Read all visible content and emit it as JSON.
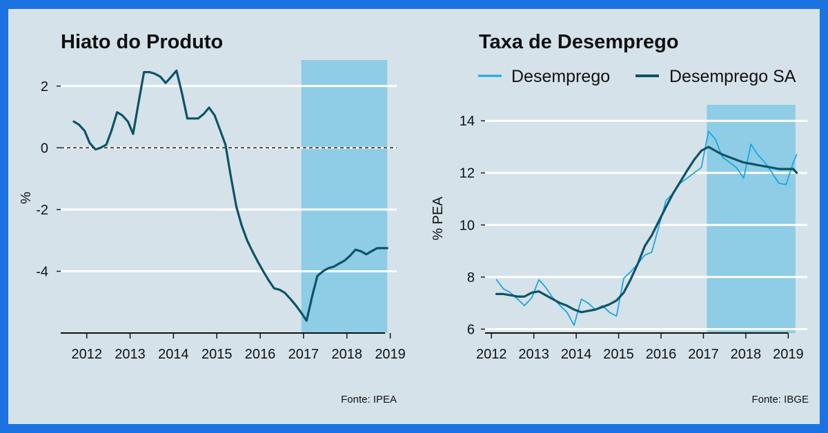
{
  "theme": {
    "border": "#1a73e0",
    "panel_bg": "#d5e2ea",
    "grid": "#ffffff",
    "highlight": "#8fcce6",
    "series_dark": "#0d5366",
    "series_light": "#19a7e0",
    "text": "#111111"
  },
  "chart_data": [
    {
      "type": "line",
      "title": "Hiato do Produto",
      "ylabel": "%",
      "xlabel": "",
      "source": "Fonte: IPEA",
      "xlim": [
        2011.4,
        2019.15
      ],
      "ylim": [
        -6.0,
        3.0
      ],
      "x_ticks": [
        2012,
        2013,
        2014,
        2015,
        2016,
        2017,
        2018,
        2019
      ],
      "x_tick_labels": [
        "2012",
        "2013",
        "2014",
        "2015",
        "2016",
        "2017",
        "2018",
        "2019"
      ],
      "y_ticks": [
        -4,
        -2,
        0,
        2
      ],
      "y_tick_labels": [
        "-4",
        "-2",
        "0",
        "2"
      ],
      "grid": true,
      "reference_line": {
        "y": 0,
        "style": "dashed"
      },
      "highlight_band": {
        "x": [
          2016.95,
          2018.93
        ]
      },
      "series": [
        {
          "x": [
            2011.7,
            2011.82,
            2011.95,
            2012.07,
            2012.2,
            2012.32,
            2012.45,
            2012.57,
            2012.7,
            2012.82,
            2012.95,
            2013.07,
            2013.2,
            2013.32,
            2013.45,
            2013.57,
            2013.7,
            2013.82,
            2013.95,
            2014.07,
            2014.2,
            2014.32,
            2014.45,
            2014.57,
            2014.7,
            2014.82,
            2014.95,
            2015.07,
            2015.2,
            2015.32,
            2015.45,
            2015.57,
            2015.7,
            2015.82,
            2015.95,
            2016.07,
            2016.2,
            2016.32,
            2016.45,
            2016.57,
            2016.7,
            2016.82,
            2016.95,
            2017.07,
            2017.2,
            2017.32,
            2017.45,
            2017.57,
            2017.7,
            2017.82,
            2017.95,
            2018.07,
            2018.2,
            2018.32,
            2018.45,
            2018.57,
            2018.7,
            2018.82,
            2018.93
          ],
          "values": [
            0.85,
            0.75,
            0.55,
            0.15,
            -0.05,
            0.0,
            0.1,
            0.55,
            1.15,
            1.05,
            0.85,
            0.45,
            1.5,
            2.45,
            2.45,
            2.4,
            2.3,
            2.1,
            2.3,
            2.5,
            1.75,
            0.95,
            0.95,
            0.95,
            1.1,
            1.3,
            1.05,
            0.6,
            0.1,
            -0.9,
            -1.9,
            -2.5,
            -3.0,
            -3.35,
            -3.7,
            -4.0,
            -4.3,
            -4.55,
            -4.6,
            -4.7,
            -4.9,
            -5.1,
            -5.35,
            -5.6,
            -4.8,
            -4.15,
            -4.0,
            -3.9,
            -3.85,
            -3.75,
            -3.65,
            -3.5,
            -3.3,
            -3.35,
            -3.45,
            -3.35,
            -3.25,
            -3.25,
            -3.25
          ]
        }
      ]
    },
    {
      "type": "line",
      "title": "Taxa de Desemprego",
      "ylabel": "% PEA",
      "xlabel": "",
      "source": "Fonte: IBGE",
      "xlim": [
        2011.85,
        2019.45
      ],
      "ylim": [
        5.85,
        14.8
      ],
      "x_ticks": [
        2012,
        2013,
        2014,
        2015,
        2016,
        2017,
        2018,
        2019
      ],
      "x_tick_labels": [
        "2012",
        "2013",
        "2014",
        "2015",
        "2016",
        "2017",
        "2018",
        "2019"
      ],
      "y_ticks": [
        6,
        8,
        10,
        12,
        14
      ],
      "y_tick_labels": [
        "6",
        "8",
        "10",
        "12",
        "14"
      ],
      "grid": true,
      "legend_position": "top",
      "highlight_band": {
        "x": [
          2017.08,
          2019.17
        ]
      },
      "series": [
        {
          "name": "Desemprego",
          "style": "thin",
          "x": [
            2012.12,
            2012.28,
            2012.45,
            2012.62,
            2012.78,
            2012.95,
            2013.12,
            2013.28,
            2013.45,
            2013.62,
            2013.78,
            2013.95,
            2014.12,
            2014.28,
            2014.45,
            2014.62,
            2014.78,
            2014.95,
            2015.12,
            2015.28,
            2015.45,
            2015.62,
            2015.78,
            2015.95,
            2016.12,
            2016.28,
            2016.45,
            2016.62,
            2016.78,
            2016.95,
            2017.12,
            2017.28,
            2017.45,
            2017.62,
            2017.78,
            2017.95,
            2018.12,
            2018.28,
            2018.45,
            2018.62,
            2018.78,
            2018.95,
            2019.12,
            2019.2
          ],
          "values": [
            7.9,
            7.55,
            7.4,
            7.15,
            6.9,
            7.2,
            7.9,
            7.6,
            7.2,
            6.9,
            6.65,
            6.15,
            7.15,
            7.0,
            6.75,
            6.9,
            6.65,
            6.5,
            7.95,
            8.2,
            8.5,
            8.85,
            8.95,
            9.95,
            10.95,
            11.2,
            11.6,
            11.8,
            12.0,
            12.2,
            13.6,
            13.3,
            12.6,
            12.4,
            12.2,
            11.8,
            13.1,
            12.7,
            12.4,
            12.0,
            11.6,
            11.55,
            12.4,
            12.7
          ]
        },
        {
          "name": "Desemprego SA",
          "style": "thick",
          "x": [
            2012.12,
            2012.28,
            2012.45,
            2012.62,
            2012.78,
            2012.95,
            2013.12,
            2013.28,
            2013.45,
            2013.62,
            2013.78,
            2013.95,
            2014.12,
            2014.28,
            2014.45,
            2014.62,
            2014.78,
            2014.95,
            2015.12,
            2015.28,
            2015.45,
            2015.62,
            2015.78,
            2015.95,
            2016.12,
            2016.28,
            2016.45,
            2016.62,
            2016.78,
            2016.95,
            2017.12,
            2017.28,
            2017.45,
            2017.62,
            2017.78,
            2017.95,
            2018.12,
            2018.28,
            2018.45,
            2018.62,
            2018.78,
            2018.95,
            2019.12,
            2019.2
          ],
          "values": [
            7.35,
            7.35,
            7.3,
            7.25,
            7.25,
            7.4,
            7.45,
            7.3,
            7.15,
            7.0,
            6.9,
            6.75,
            6.65,
            6.7,
            6.75,
            6.85,
            6.95,
            7.1,
            7.4,
            7.9,
            8.5,
            9.2,
            9.6,
            10.15,
            10.7,
            11.2,
            11.65,
            12.1,
            12.5,
            12.85,
            13.0,
            12.85,
            12.7,
            12.6,
            12.5,
            12.4,
            12.35,
            12.3,
            12.25,
            12.2,
            12.15,
            12.15,
            12.15,
            12.0
          ]
        }
      ]
    }
  ]
}
